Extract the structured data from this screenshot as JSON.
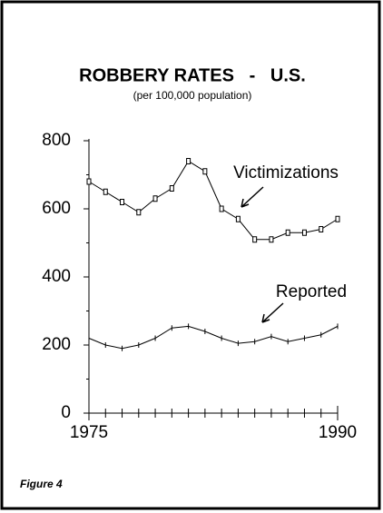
{
  "chart_data": {
    "type": "line",
    "title": "ROBBERY RATES   -   U.S.",
    "subtitle": "(per 100,000 population)",
    "x": [
      1975,
      1976,
      1977,
      1978,
      1979,
      1980,
      1981,
      1982,
      1983,
      1984,
      1985,
      1986,
      1987,
      1988,
      1989,
      1990
    ],
    "series": [
      {
        "name": "Victimizations",
        "color": "#000",
        "marker": "square",
        "values": [
          680,
          650,
          620,
          590,
          630,
          660,
          740,
          710,
          600,
          570,
          510,
          510,
          530,
          530,
          540,
          570
        ]
      },
      {
        "name": "Reported",
        "color": "#000",
        "marker": "tick",
        "values": [
          220,
          200,
          190,
          200,
          220,
          250,
          255,
          240,
          220,
          205,
          210,
          225,
          210,
          220,
          230,
          255
        ]
      }
    ],
    "xlim": [
      1975,
      1990
    ],
    "xticks": [
      1975,
      1990
    ],
    "xminorticks": [
      1976,
      1977,
      1978,
      1979,
      1980,
      1981,
      1982,
      1983,
      1984,
      1985,
      1986,
      1987,
      1988,
      1989
    ],
    "ylim": [
      0,
      800
    ],
    "yticks": [
      0,
      200,
      400,
      600,
      800
    ],
    "yminorticks": [
      100,
      300,
      500,
      700
    ],
    "footer": "Figure 4"
  }
}
